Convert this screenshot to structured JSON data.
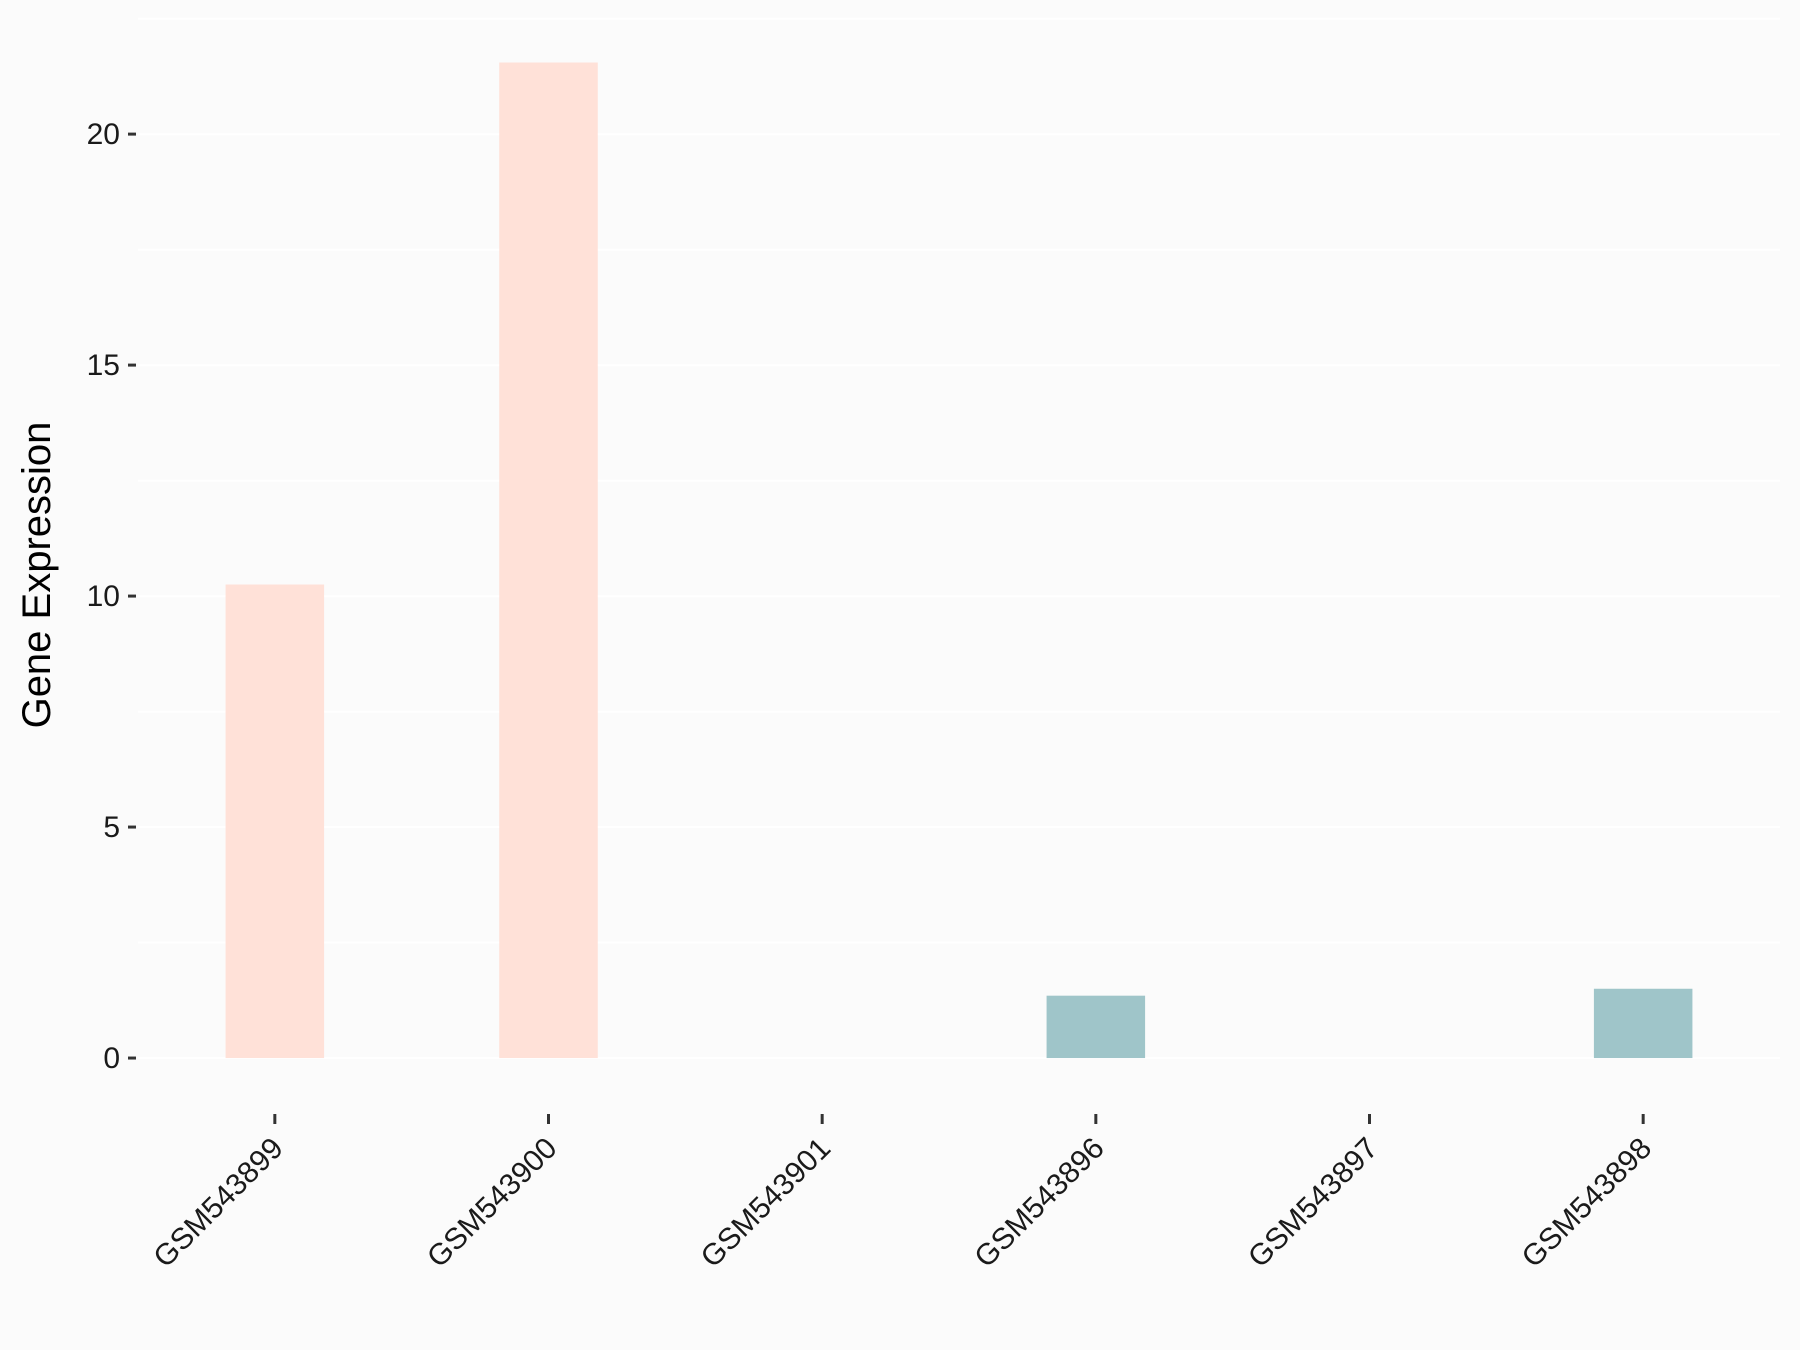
{
  "chart_data": {
    "type": "bar",
    "title": "",
    "xlabel": "",
    "ylabel": "Gene Expression",
    "categories": [
      "GSM543899",
      "GSM543900",
      "GSM543901",
      "GSM543896",
      "GSM543897",
      "GSM543898"
    ],
    "values": [
      10.25,
      21.55,
      0,
      1.35,
      0,
      1.5
    ],
    "bar_colors": [
      "#ffe1d8",
      "#ffe1d8",
      "#ffe1d8",
      "#9fc5c9",
      "#9fc5c9",
      "#9fc5c9"
    ],
    "ylim": [
      -0.8,
      22.6
    ],
    "yticks": [
      0,
      5,
      10,
      15,
      20
    ],
    "grid": true,
    "legend": "none"
  }
}
